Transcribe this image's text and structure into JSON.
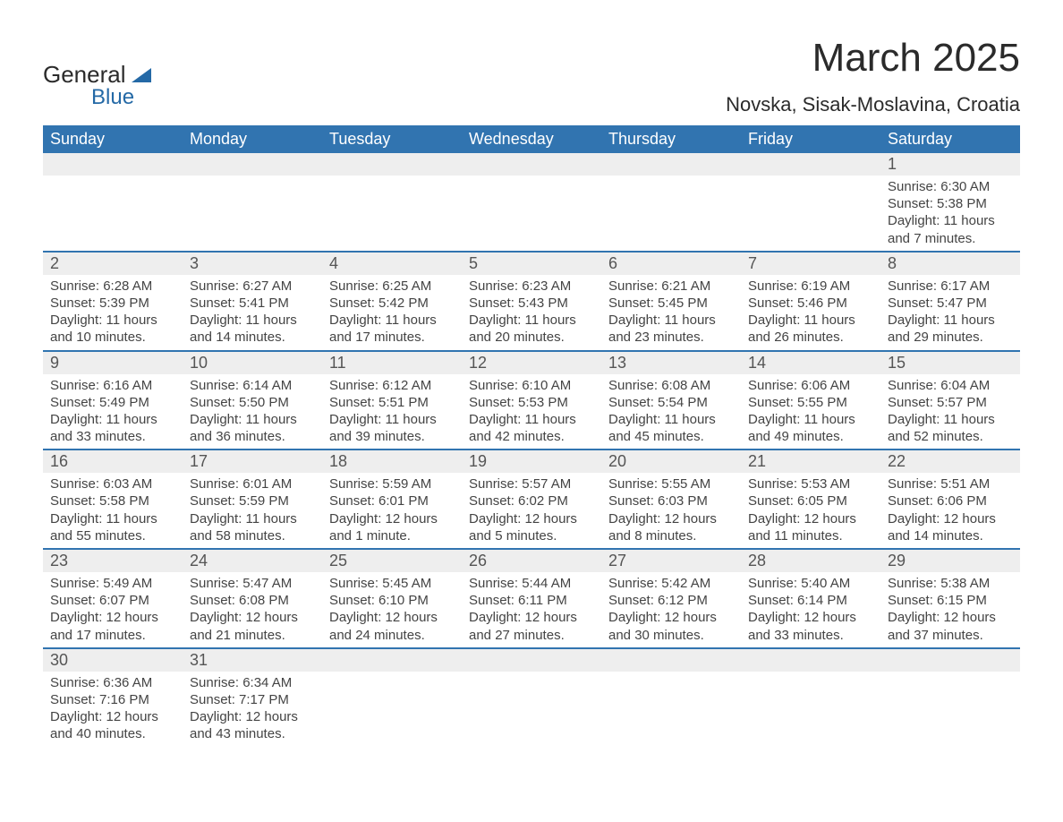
{
  "branding": {
    "text_general": "General",
    "text_blue": "Blue",
    "brand_color": "#2469a6"
  },
  "title": {
    "month_year": "March 2025",
    "location": "Novska, Sisak-Moslavina, Croatia"
  },
  "calendar": {
    "header_bg": "#3174b0",
    "header_fg": "#ffffff",
    "row_separator_color": "#3174b0",
    "daynum_bg": "#eeeeee",
    "weekdays": [
      "Sunday",
      "Monday",
      "Tuesday",
      "Wednesday",
      "Thursday",
      "Friday",
      "Saturday"
    ],
    "weeks": [
      [
        {
          "blank": true
        },
        {
          "blank": true
        },
        {
          "blank": true
        },
        {
          "blank": true
        },
        {
          "blank": true
        },
        {
          "blank": true
        },
        {
          "day": "1",
          "sunrise": "Sunrise: 6:30 AM",
          "sunset": "Sunset: 5:38 PM",
          "daylight_a": "Daylight: 11 hours",
          "daylight_b": "and 7 minutes."
        }
      ],
      [
        {
          "day": "2",
          "sunrise": "Sunrise: 6:28 AM",
          "sunset": "Sunset: 5:39 PM",
          "daylight_a": "Daylight: 11 hours",
          "daylight_b": "and 10 minutes."
        },
        {
          "day": "3",
          "sunrise": "Sunrise: 6:27 AM",
          "sunset": "Sunset: 5:41 PM",
          "daylight_a": "Daylight: 11 hours",
          "daylight_b": "and 14 minutes."
        },
        {
          "day": "4",
          "sunrise": "Sunrise: 6:25 AM",
          "sunset": "Sunset: 5:42 PM",
          "daylight_a": "Daylight: 11 hours",
          "daylight_b": "and 17 minutes."
        },
        {
          "day": "5",
          "sunrise": "Sunrise: 6:23 AM",
          "sunset": "Sunset: 5:43 PM",
          "daylight_a": "Daylight: 11 hours",
          "daylight_b": "and 20 minutes."
        },
        {
          "day": "6",
          "sunrise": "Sunrise: 6:21 AM",
          "sunset": "Sunset: 5:45 PM",
          "daylight_a": "Daylight: 11 hours",
          "daylight_b": "and 23 minutes."
        },
        {
          "day": "7",
          "sunrise": "Sunrise: 6:19 AM",
          "sunset": "Sunset: 5:46 PM",
          "daylight_a": "Daylight: 11 hours",
          "daylight_b": "and 26 minutes."
        },
        {
          "day": "8",
          "sunrise": "Sunrise: 6:17 AM",
          "sunset": "Sunset: 5:47 PM",
          "daylight_a": "Daylight: 11 hours",
          "daylight_b": "and 29 minutes."
        }
      ],
      [
        {
          "day": "9",
          "sunrise": "Sunrise: 6:16 AM",
          "sunset": "Sunset: 5:49 PM",
          "daylight_a": "Daylight: 11 hours",
          "daylight_b": "and 33 minutes."
        },
        {
          "day": "10",
          "sunrise": "Sunrise: 6:14 AM",
          "sunset": "Sunset: 5:50 PM",
          "daylight_a": "Daylight: 11 hours",
          "daylight_b": "and 36 minutes."
        },
        {
          "day": "11",
          "sunrise": "Sunrise: 6:12 AM",
          "sunset": "Sunset: 5:51 PM",
          "daylight_a": "Daylight: 11 hours",
          "daylight_b": "and 39 minutes."
        },
        {
          "day": "12",
          "sunrise": "Sunrise: 6:10 AM",
          "sunset": "Sunset: 5:53 PM",
          "daylight_a": "Daylight: 11 hours",
          "daylight_b": "and 42 minutes."
        },
        {
          "day": "13",
          "sunrise": "Sunrise: 6:08 AM",
          "sunset": "Sunset: 5:54 PM",
          "daylight_a": "Daylight: 11 hours",
          "daylight_b": "and 45 minutes."
        },
        {
          "day": "14",
          "sunrise": "Sunrise: 6:06 AM",
          "sunset": "Sunset: 5:55 PM",
          "daylight_a": "Daylight: 11 hours",
          "daylight_b": "and 49 minutes."
        },
        {
          "day": "15",
          "sunrise": "Sunrise: 6:04 AM",
          "sunset": "Sunset: 5:57 PM",
          "daylight_a": "Daylight: 11 hours",
          "daylight_b": "and 52 minutes."
        }
      ],
      [
        {
          "day": "16",
          "sunrise": "Sunrise: 6:03 AM",
          "sunset": "Sunset: 5:58 PM",
          "daylight_a": "Daylight: 11 hours",
          "daylight_b": "and 55 minutes."
        },
        {
          "day": "17",
          "sunrise": "Sunrise: 6:01 AM",
          "sunset": "Sunset: 5:59 PM",
          "daylight_a": "Daylight: 11 hours",
          "daylight_b": "and 58 minutes."
        },
        {
          "day": "18",
          "sunrise": "Sunrise: 5:59 AM",
          "sunset": "Sunset: 6:01 PM",
          "daylight_a": "Daylight: 12 hours",
          "daylight_b": "and 1 minute."
        },
        {
          "day": "19",
          "sunrise": "Sunrise: 5:57 AM",
          "sunset": "Sunset: 6:02 PM",
          "daylight_a": "Daylight: 12 hours",
          "daylight_b": "and 5 minutes."
        },
        {
          "day": "20",
          "sunrise": "Sunrise: 5:55 AM",
          "sunset": "Sunset: 6:03 PM",
          "daylight_a": "Daylight: 12 hours",
          "daylight_b": "and 8 minutes."
        },
        {
          "day": "21",
          "sunrise": "Sunrise: 5:53 AM",
          "sunset": "Sunset: 6:05 PM",
          "daylight_a": "Daylight: 12 hours",
          "daylight_b": "and 11 minutes."
        },
        {
          "day": "22",
          "sunrise": "Sunrise: 5:51 AM",
          "sunset": "Sunset: 6:06 PM",
          "daylight_a": "Daylight: 12 hours",
          "daylight_b": "and 14 minutes."
        }
      ],
      [
        {
          "day": "23",
          "sunrise": "Sunrise: 5:49 AM",
          "sunset": "Sunset: 6:07 PM",
          "daylight_a": "Daylight: 12 hours",
          "daylight_b": "and 17 minutes."
        },
        {
          "day": "24",
          "sunrise": "Sunrise: 5:47 AM",
          "sunset": "Sunset: 6:08 PM",
          "daylight_a": "Daylight: 12 hours",
          "daylight_b": "and 21 minutes."
        },
        {
          "day": "25",
          "sunrise": "Sunrise: 5:45 AM",
          "sunset": "Sunset: 6:10 PM",
          "daylight_a": "Daylight: 12 hours",
          "daylight_b": "and 24 minutes."
        },
        {
          "day": "26",
          "sunrise": "Sunrise: 5:44 AM",
          "sunset": "Sunset: 6:11 PM",
          "daylight_a": "Daylight: 12 hours",
          "daylight_b": "and 27 minutes."
        },
        {
          "day": "27",
          "sunrise": "Sunrise: 5:42 AM",
          "sunset": "Sunset: 6:12 PM",
          "daylight_a": "Daylight: 12 hours",
          "daylight_b": "and 30 minutes."
        },
        {
          "day": "28",
          "sunrise": "Sunrise: 5:40 AM",
          "sunset": "Sunset: 6:14 PM",
          "daylight_a": "Daylight: 12 hours",
          "daylight_b": "and 33 minutes."
        },
        {
          "day": "29",
          "sunrise": "Sunrise: 5:38 AM",
          "sunset": "Sunset: 6:15 PM",
          "daylight_a": "Daylight: 12 hours",
          "daylight_b": "and 37 minutes."
        }
      ],
      [
        {
          "day": "30",
          "sunrise": "Sunrise: 6:36 AM",
          "sunset": "Sunset: 7:16 PM",
          "daylight_a": "Daylight: 12 hours",
          "daylight_b": "and 40 minutes."
        },
        {
          "day": "31",
          "sunrise": "Sunrise: 6:34 AM",
          "sunset": "Sunset: 7:17 PM",
          "daylight_a": "Daylight: 12 hours",
          "daylight_b": "and 43 minutes."
        },
        {
          "blank": true
        },
        {
          "blank": true
        },
        {
          "blank": true
        },
        {
          "blank": true
        },
        {
          "blank": true
        }
      ]
    ]
  }
}
